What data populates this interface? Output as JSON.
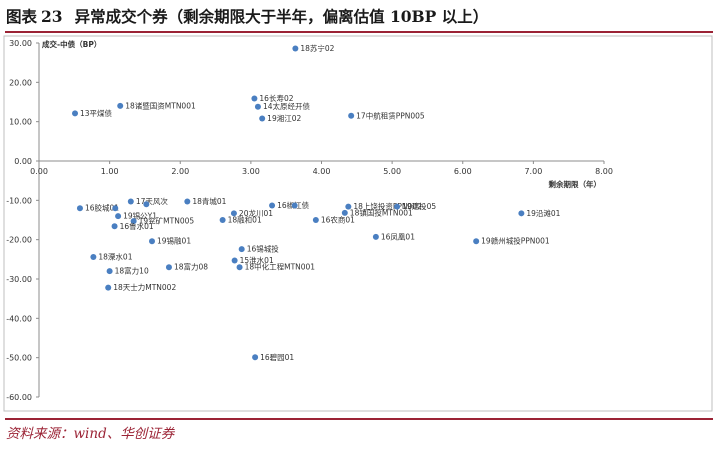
{
  "figure": {
    "label": "图表",
    "number": "23",
    "title": "异常成交个券（剩余期限大于半年，偏离估值 10BP 以上）",
    "source": "资料来源：wind、华创证券"
  },
  "colors": {
    "accent": "#9b2335",
    "point": "#4a7fc1",
    "axis": "#8c8c8c",
    "grid_box": "#bfbfbf"
  },
  "chart_data": {
    "type": "scatter",
    "title": "",
    "xlabel": "剩余期限（年）",
    "ylabel": "成交-中债（BP）",
    "xlim": [
      0,
      8
    ],
    "ylim": [
      -60,
      30
    ],
    "x_ticks": [
      0,
      1,
      2,
      3,
      4,
      5,
      6,
      7,
      8
    ],
    "x_tick_labels": [
      "0.00",
      "1.00",
      "2.00",
      "3.00",
      "4.00",
      "5.00",
      "6.00",
      "7.00",
      "8.00"
    ],
    "y_ticks": [
      30,
      20,
      10,
      0,
      -10,
      -20,
      -30,
      -40,
      -50,
      -60
    ],
    "y_tick_labels": [
      "30.00",
      "20.00",
      "10.00",
      "0.00",
      "-10.00",
      "-20.00",
      "-30.00",
      "-40.00",
      "-50.00",
      "-60.00"
    ],
    "grid": false,
    "legend": "none",
    "points": [
      {
        "label": "18苏宁02",
        "x": 3.63,
        "y": 28.6
      },
      {
        "label": "18诸暨国资MTN001",
        "x": 1.15,
        "y": 14.0
      },
      {
        "label": "13平煤债",
        "x": 0.51,
        "y": 12.1
      },
      {
        "label": "16长寿02",
        "x": 3.05,
        "y": 15.9
      },
      {
        "label": "14太原经开债",
        "x": 3.1,
        "y": 13.8
      },
      {
        "label": "19湘江02",
        "x": 3.16,
        "y": 10.8
      },
      {
        "label": "17中航租赁PPN005",
        "x": 4.42,
        "y": 11.5
      },
      {
        "label": "16胶城01",
        "x": 0.58,
        "y": -12.0
      },
      {
        "label": "17天风次",
        "x": 1.3,
        "y": -10.3
      },
      {
        "label": "",
        "x": 1.08,
        "y": -12.0
      },
      {
        "label": "",
        "x": 1.52,
        "y": -11.0
      },
      {
        "label": "19锡公Y1",
        "x": 1.12,
        "y": -14.0
      },
      {
        "label": "19兖矿MTN005",
        "x": 1.34,
        "y": -15.3
      },
      {
        "label": "16鲁水01",
        "x": 1.07,
        "y": -16.6
      },
      {
        "label": "18青城01",
        "x": 2.1,
        "y": -10.3
      },
      {
        "label": "16椒江债",
        "x": 3.3,
        "y": -11.3
      },
      {
        "label": "",
        "x": 3.62,
        "y": -11.3
      },
      {
        "label": "20龙川01",
        "x": 2.76,
        "y": -13.3
      },
      {
        "label": "18融和01",
        "x": 2.6,
        "y": -15.0
      },
      {
        "label": "16农商01",
        "x": 3.92,
        "y": -15.0
      },
      {
        "label": "18上饶投资PPN002",
        "x": 4.38,
        "y": -11.6
      },
      {
        "label": "18镇国投MTN001",
        "x": 4.33,
        "y": -13.2
      },
      {
        "label": "19建投05",
        "x": 5.07,
        "y": -11.6
      },
      {
        "label": "19沿滩01",
        "x": 6.83,
        "y": -13.3
      },
      {
        "label": "16凤凰01",
        "x": 4.77,
        "y": -19.3
      },
      {
        "label": "19赣州城投PPN001",
        "x": 6.19,
        "y": -20.4
      },
      {
        "label": "19锡融01",
        "x": 1.6,
        "y": -20.4
      },
      {
        "label": "18溧水01",
        "x": 0.77,
        "y": -24.4
      },
      {
        "label": "16锡城投",
        "x": 2.87,
        "y": -22.4
      },
      {
        "label": "15淮水01",
        "x": 2.77,
        "y": -25.3
      },
      {
        "label": "18中化工程MTN001",
        "x": 2.84,
        "y": -27.0
      },
      {
        "label": "18富力10",
        "x": 1.0,
        "y": -28.0
      },
      {
        "label": "18富力08",
        "x": 1.84,
        "y": -27.0
      },
      {
        "label": "18天士力MTN002",
        "x": 0.98,
        "y": -32.2
      },
      {
        "label": "16碧园01",
        "x": 3.06,
        "y": -49.9
      }
    ]
  }
}
